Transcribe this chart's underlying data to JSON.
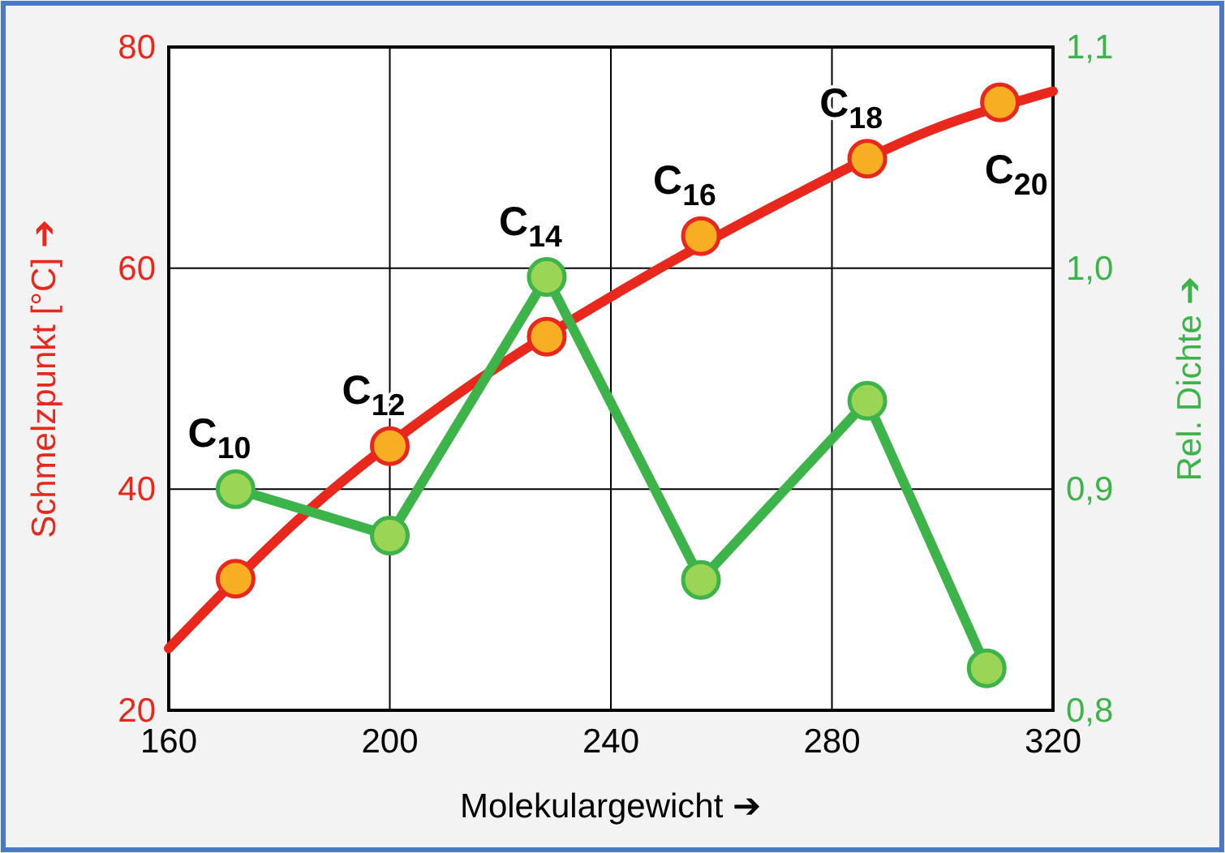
{
  "chart_data": {
    "type": "line",
    "xlabel": "Molekulargewicht ➔",
    "ylabel": "Schmelzpunkt [°C] ➔",
    "y2label": "Rel. Dichte ➔",
    "xlim": [
      160,
      320
    ],
    "xticks": [
      160,
      200,
      240,
      280,
      320
    ],
    "ylim": [
      20,
      80
    ],
    "yticks": [
      20,
      40,
      60,
      80
    ],
    "y2lim": [
      0.8,
      1.1
    ],
    "y2ticks": [
      {
        "value": 0.8,
        "label": "0,8"
      },
      {
        "value": 0.9,
        "label": "0,9"
      },
      {
        "value": 1.0,
        "label": "1,0"
      },
      {
        "value": 1.1,
        "label": "1,1"
      }
    ],
    "grid": true,
    "series": [
      {
        "color": "#e8281c",
        "marker": "none",
        "x": [
          160,
          186,
          214,
          242,
          271,
          298,
          320
        ],
        "values": [
          25.6,
          38.4,
          49.2,
          58.0,
          66.0,
          72.5,
          76.0
        ]
      },
      {
        "type": "scatter",
        "color": "#f7ae22",
        "marker": "circle",
        "x": [
          172.1,
          200,
          228.4,
          256.3,
          286.4,
          310.4
        ],
        "values": [
          31.9,
          43.9,
          53.8,
          62.9,
          69.9,
          75.0
        ]
      },
      {
        "axis": "y2",
        "color": "#3cb44a",
        "marker": "circle",
        "x": [
          172.1,
          200,
          228.4,
          256.3,
          286.4,
          308
        ],
        "values": [
          0.9,
          0.879,
          0.996,
          0.859,
          0.94,
          0.819
        ]
      }
    ],
    "annotations": [
      {
        "text": "C$_{10}$",
        "x": 172.1,
        "y": 31.9
      },
      {
        "text": "C$_{12}$",
        "x": 200,
        "y": 43.9
      },
      {
        "text": "C$_{14}$",
        "x": 228.4,
        "y": 53.8
      },
      {
        "text": "C$_{16}$",
        "x": 256.3,
        "y": 62.9
      },
      {
        "text": "C$_{18}$",
        "x": 286.4,
        "y": 69.9
      },
      {
        "text": "C$_{20}$",
        "x": 310.4,
        "y": 75.0
      }
    ]
  }
}
